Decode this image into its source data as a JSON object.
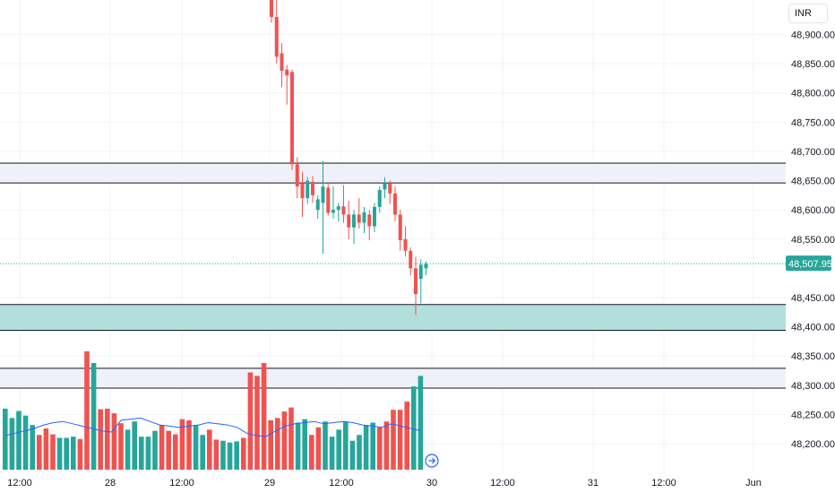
{
  "currency": "INR",
  "scroll_button_icon": "arrow-right-icon",
  "colors": {
    "up": "#26a69a",
    "down": "#ef5350",
    "volume_up": "#26a69a",
    "volume_down": "#ef5350",
    "ma_line": "#2962ff",
    "zone_fill": "#f0f0f8",
    "demand_zone_fill": "#b2dfdb",
    "price_tag_bg": "#26a69a",
    "price_line": "#26a69a"
  },
  "chart_data": {
    "type": "candlestick",
    "ylim": [
      48170,
      49000
    ],
    "y_ticks": [
      48900,
      48850,
      48800,
      48750,
      48700,
      48650,
      48600,
      48550,
      48450,
      48400,
      48350,
      48300,
      48250,
      48200
    ],
    "y_tick_labels": [
      "48,900.00",
      "48,850.00",
      "48,800.00",
      "48,750.00",
      "48,700.00",
      "48,650.00",
      "48,600.00",
      "48,550.00",
      "48,450.00",
      "48,400.00",
      "48,350.00",
      "48,300.00",
      "48,250.00",
      "48,200.00"
    ],
    "x_tick_labels": [
      "12:00",
      "28",
      "12:00",
      "29",
      "12:00",
      "30",
      "12:00",
      "31",
      "12:00",
      "Jun"
    ],
    "last_price": 48507.95,
    "last_price_label": "48,507.95",
    "zones": [
      {
        "low": 48646,
        "high": 48680,
        "kind": "supply"
      },
      {
        "low": 48394,
        "high": 48438,
        "kind": "demand"
      },
      {
        "low": 48295,
        "high": 48329,
        "kind": "support"
      }
    ],
    "candles": [
      {
        "o": 48985,
        "h": 48995,
        "l": 48920,
        "c": 48930
      },
      {
        "o": 48930,
        "h": 48960,
        "l": 48850,
        "c": 48862
      },
      {
        "o": 48868,
        "h": 48885,
        "l": 48810,
        "c": 48838
      },
      {
        "o": 48840,
        "h": 48848,
        "l": 48780,
        "c": 48830
      },
      {
        "o": 48836,
        "h": 48840,
        "l": 48668,
        "c": 48678
      },
      {
        "o": 48678,
        "h": 48690,
        "l": 48620,
        "c": 48640
      },
      {
        "o": 48645,
        "h": 48665,
        "l": 48588,
        "c": 48620
      },
      {
        "o": 48620,
        "h": 48656,
        "l": 48610,
        "c": 48650
      },
      {
        "o": 48648,
        "h": 48658,
        "l": 48612,
        "c": 48625
      },
      {
        "o": 48600,
        "h": 48625,
        "l": 48585,
        "c": 48618
      },
      {
        "o": 48612,
        "h": 48684,
        "l": 48525,
        "c": 48640
      },
      {
        "o": 48638,
        "h": 48646,
        "l": 48590,
        "c": 48595
      },
      {
        "o": 48595,
        "h": 48640,
        "l": 48585,
        "c": 48600
      },
      {
        "o": 48600,
        "h": 48612,
        "l": 48580,
        "c": 48606
      },
      {
        "o": 48606,
        "h": 48642,
        "l": 48578,
        "c": 48592
      },
      {
        "o": 48592,
        "h": 48616,
        "l": 48550,
        "c": 48570
      },
      {
        "o": 48570,
        "h": 48600,
        "l": 48542,
        "c": 48592
      },
      {
        "o": 48592,
        "h": 48620,
        "l": 48568,
        "c": 48578
      },
      {
        "o": 48578,
        "h": 48605,
        "l": 48560,
        "c": 48596
      },
      {
        "o": 48592,
        "h": 48600,
        "l": 48548,
        "c": 48572
      },
      {
        "o": 48572,
        "h": 48612,
        "l": 48562,
        "c": 48605
      },
      {
        "o": 48605,
        "h": 48640,
        "l": 48595,
        "c": 48634
      },
      {
        "o": 48635,
        "h": 48656,
        "l": 48620,
        "c": 48645
      },
      {
        "o": 48645,
        "h": 48650,
        "l": 48610,
        "c": 48628
      },
      {
        "o": 48628,
        "h": 48640,
        "l": 48580,
        "c": 48592
      },
      {
        "o": 48592,
        "h": 48600,
        "l": 48530,
        "c": 48548
      },
      {
        "o": 48550,
        "h": 48572,
        "l": 48520,
        "c": 48530
      },
      {
        "o": 48530,
        "h": 48536,
        "l": 48488,
        "c": 48500
      },
      {
        "o": 48500,
        "h": 48520,
        "l": 48420,
        "c": 48456
      },
      {
        "o": 48482,
        "h": 48515,
        "l": 48440,
        "c": 48506
      },
      {
        "o": 48500,
        "h": 48512,
        "l": 48488,
        "c": 48508
      }
    ],
    "volume_bars": [
      {
        "v": 48260,
        "dir": "up"
      },
      {
        "v": 48244,
        "dir": "up"
      },
      {
        "v": 48256,
        "dir": "up"
      },
      {
        "v": 48248,
        "dir": "up"
      },
      {
        "v": 48232,
        "dir": "up"
      },
      {
        "v": 48215,
        "dir": "down"
      },
      {
        "v": 48226,
        "dir": "down"
      },
      {
        "v": 48216,
        "dir": "down"
      },
      {
        "v": 48210,
        "dir": "up"
      },
      {
        "v": 48210,
        "dir": "up"
      },
      {
        "v": 48212,
        "dir": "up"
      },
      {
        "v": 48208,
        "dir": "down"
      },
      {
        "v": 48358,
        "dir": "down"
      },
      {
        "v": 48338,
        "dir": "up"
      },
      {
        "v": 48259,
        "dir": "down"
      },
      {
        "v": 48260,
        "dir": "down"
      },
      {
        "v": 48252,
        "dir": "down"
      },
      {
        "v": 48235,
        "dir": "down"
      },
      {
        "v": 48224,
        "dir": "up"
      },
      {
        "v": 48238,
        "dir": "up"
      },
      {
        "v": 48212,
        "dir": "up"
      },
      {
        "v": 48212,
        "dir": "up"
      },
      {
        "v": 48222,
        "dir": "up"
      },
      {
        "v": 48232,
        "dir": "down"
      },
      {
        "v": 48222,
        "dir": "down"
      },
      {
        "v": 48216,
        "dir": "down"
      },
      {
        "v": 48242,
        "dir": "down"
      },
      {
        "v": 48240,
        "dir": "down"
      },
      {
        "v": 48232,
        "dir": "up"
      },
      {
        "v": 48215,
        "dir": "up"
      },
      {
        "v": 48224,
        "dir": "down"
      },
      {
        "v": 48207,
        "dir": "down"
      },
      {
        "v": 48205,
        "dir": "up"
      },
      {
        "v": 48202,
        "dir": "up"
      },
      {
        "v": 48204,
        "dir": "up"
      },
      {
        "v": 48210,
        "dir": "down"
      },
      {
        "v": 48322,
        "dir": "down"
      },
      {
        "v": 48316,
        "dir": "down"
      },
      {
        "v": 48338,
        "dir": "down"
      },
      {
        "v": 48240,
        "dir": "down"
      },
      {
        "v": 48244,
        "dir": "down"
      },
      {
        "v": 48255,
        "dir": "down"
      },
      {
        "v": 48262,
        "dir": "down"
      },
      {
        "v": 48236,
        "dir": "up"
      },
      {
        "v": 48242,
        "dir": "up"
      },
      {
        "v": 48215,
        "dir": "down"
      },
      {
        "v": 48228,
        "dir": "down"
      },
      {
        "v": 48238,
        "dir": "up"
      },
      {
        "v": 48212,
        "dir": "up"
      },
      {
        "v": 48224,
        "dir": "up"
      },
      {
        "v": 48238,
        "dir": "up"
      },
      {
        "v": 48205,
        "dir": "up"
      },
      {
        "v": 48215,
        "dir": "up"
      },
      {
        "v": 48232,
        "dir": "up"
      },
      {
        "v": 48236,
        "dir": "up"
      },
      {
        "v": 48228,
        "dir": "down"
      },
      {
        "v": 48238,
        "dir": "down"
      },
      {
        "v": 48258,
        "dir": "down"
      },
      {
        "v": 48258,
        "dir": "down"
      },
      {
        "v": 48272,
        "dir": "down"
      },
      {
        "v": 48298,
        "dir": "up"
      },
      {
        "v": 48316,
        "dir": "up"
      }
    ],
    "ma_line": [
      48214,
      48218,
      48222,
      48226,
      48232,
      48236,
      48238,
      48234,
      48230,
      48226,
      48222,
      48220,
      48240,
      48242,
      48244,
      48238,
      48232,
      48230,
      48228,
      48230,
      48232,
      48236,
      48234,
      48232,
      48228,
      48218,
      48214,
      48212,
      48222,
      48230,
      48234,
      48236,
      48238,
      48234,
      48236,
      48238,
      48236,
      48232,
      48230,
      48228,
      48234,
      48230,
      48226,
      48222
    ]
  }
}
